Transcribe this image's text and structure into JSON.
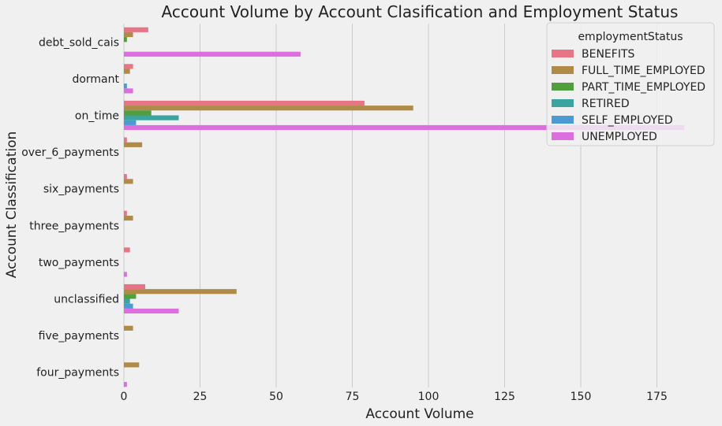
{
  "chart_data": {
    "type": "bar",
    "orientation": "horizontal",
    "title": "Account Volume by Account Clasification and Employment Status",
    "xlabel": "Account Volume",
    "ylabel": "Account Classification",
    "xlim": [
      0,
      185
    ],
    "xticks": [
      0,
      25,
      50,
      75,
      100,
      125,
      150,
      175
    ],
    "grid": "vertical",
    "categories": [
      "debt_sold_cais",
      "dormant",
      "on_time",
      "over_6_payments",
      "six_payments",
      "three_payments",
      "two_payments",
      "unclassified",
      "five_payments",
      "four_payments"
    ],
    "legend": {
      "title": "employmentStatus",
      "position": "top-right"
    },
    "series": [
      {
        "name": "BENEFITS",
        "color": "#e87585",
        "values": [
          8,
          3,
          79,
          1,
          1,
          1,
          2,
          7,
          0,
          0
        ]
      },
      {
        "name": "FULL_TIME_EMPLOYED",
        "color": "#b08b48",
        "values": [
          3,
          2,
          95,
          6,
          3,
          3,
          0,
          37,
          3,
          5
        ]
      },
      {
        "name": "PART_TIME_EMPLOYED",
        "color": "#519e3e",
        "values": [
          1,
          0,
          9,
          0,
          0,
          0,
          0,
          4,
          0,
          0
        ]
      },
      {
        "name": "RETIRED",
        "color": "#3ba3a0",
        "values": [
          0,
          0,
          18,
          0,
          0,
          0,
          0,
          2,
          0,
          0
        ]
      },
      {
        "name": "SELF_EMPLOYED",
        "color": "#4a9bd4",
        "values": [
          0,
          1,
          4,
          0,
          0,
          0,
          0,
          3,
          0,
          0
        ]
      },
      {
        "name": "UNEMPLOYED",
        "color": "#dd6ee0",
        "values": [
          58,
          3,
          184,
          0,
          0,
          0,
          1,
          18,
          0,
          1
        ]
      }
    ]
  }
}
